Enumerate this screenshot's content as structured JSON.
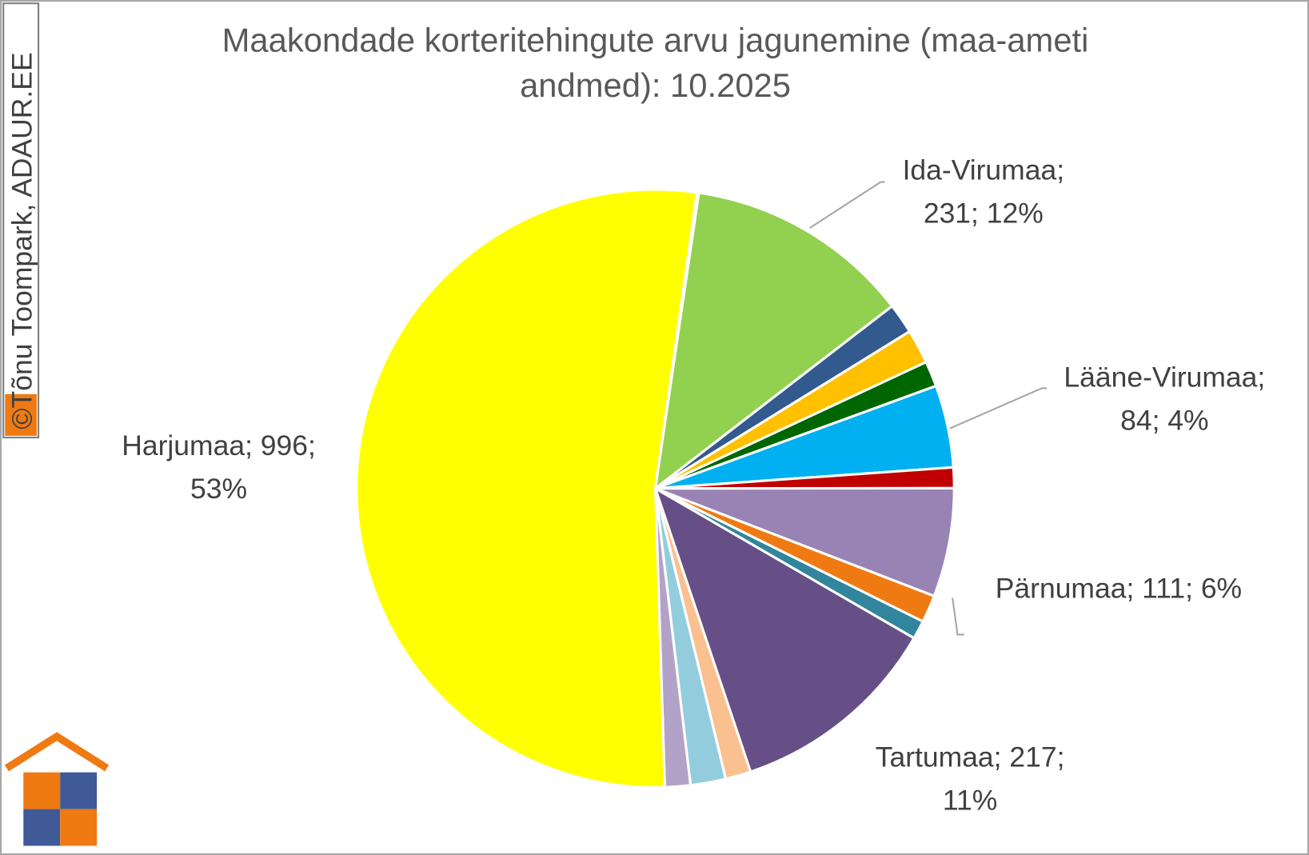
{
  "chart_data": {
    "type": "pie",
    "title": "Maakondade korteritehingute arvu jagunemine (maa-ameti andmed): 10.2025",
    "watermark": "©Tõnu Toompark, ADAUR.EE",
    "values": [
      2,
      231,
      31,
      35,
      26,
      84,
      21,
      111,
      28,
      19,
      217,
      26,
      36,
      26,
      996
    ],
    "value_labels": [
      null,
      [
        "Ida-Virumaa;",
        "231; 12%"
      ],
      null,
      null,
      null,
      [
        "Lääne-Virumaa;",
        "84; 4%"
      ],
      null,
      [
        "Pärnumaa; 111; 6%"
      ],
      null,
      null,
      [
        "Tartumaa; 217;",
        "11%"
      ],
      null,
      null,
      null,
      [
        "Harjumaa; 996;",
        "53%"
      ]
    ],
    "colors": [
      "#5a5a5a",
      "#92d050",
      "#335a8f",
      "#ffc000",
      "#006600",
      "#00b0f0",
      "#c00000",
      "#9983b5",
      "#f07a12",
      "#31859c",
      "#654f86",
      "#fac090",
      "#93cddd",
      "#b3a2c7",
      "#ffff00"
    ]
  }
}
